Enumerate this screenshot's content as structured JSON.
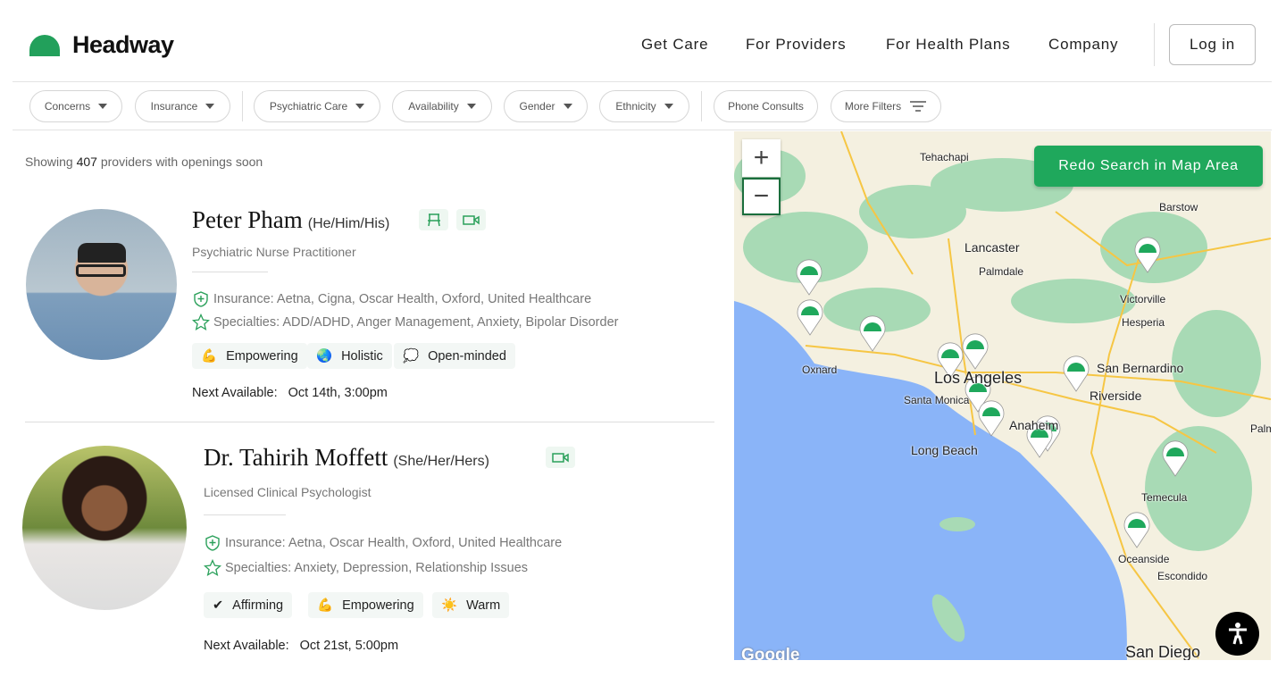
{
  "header": {
    "logo": "Headway",
    "nav": [
      "Get Care",
      "For Providers",
      "For Health Plans",
      "Company"
    ],
    "login": "Log in"
  },
  "filters": [
    "Concerns",
    "Insurance",
    "Psychiatric Care",
    "Availability",
    "Gender",
    "Ethnicity",
    "Phone Consults",
    "More Filters"
  ],
  "results": {
    "prefix": "Showing",
    "count": "407",
    "suffix": "providers with openings soon"
  },
  "providers": [
    {
      "name": "Peter Pham",
      "pronouns": "(He/Him/His)",
      "title": "Psychiatric Nurse Practitioner",
      "insurance": "Insurance: Aetna, Cigna, Oscar Health, Oxford, United Healthcare",
      "specialties": "Specialties: ADD/ADHD, Anger Management, Anxiety, Bipolar Disorder",
      "tags": [
        {
          "icon": "💪",
          "label": "Empowering"
        },
        {
          "icon": "🌏",
          "label": "Holistic"
        },
        {
          "icon": "💭",
          "label": "Open-minded"
        }
      ],
      "next_label": "Next Available:",
      "next": "Oct 14th, 3:00pm",
      "modes": [
        "in-person-chair-icon",
        "video-icon"
      ]
    },
    {
      "name": "Dr. Tahirih Moffett",
      "pronouns": "(She/Her/Hers)",
      "title": "Licensed Clinical Psychologist",
      "insurance": "Insurance: Aetna, Oscar Health, Oxford, United Healthcare",
      "specialties": "Specialties: Anxiety, Depression, Relationship Issues",
      "tags": [
        {
          "icon": "✔",
          "label": "Affirming"
        },
        {
          "icon": "💪",
          "label": "Empowering"
        },
        {
          "icon": "☀️",
          "label": "Warm"
        }
      ],
      "next_label": "Next Available:",
      "next": "Oct 21st, 5:00pm",
      "modes": [
        "video-icon"
      ]
    }
  ],
  "map": {
    "redo": "Redo Search in Map Area",
    "zoom_in": "+",
    "zoom_out": "−",
    "google": "Google",
    "labels": [
      "Tehachapi",
      "Barstow",
      "Lancaster",
      "Palmdale",
      "Victorville",
      "Hesperia",
      "Oxnard",
      "Los Angeles",
      "San Bernardino",
      "Riverside",
      "Santa Monica",
      "Anaheim",
      "Long Beach",
      "Temecula",
      "Oceanside",
      "Escondido",
      "San Diego",
      "Palm S"
    ],
    "colors": {
      "ocean": "#8ab4f8",
      "land": "#f4f0e0",
      "park": "#a8dab5",
      "pin": "#1fa85c"
    }
  }
}
